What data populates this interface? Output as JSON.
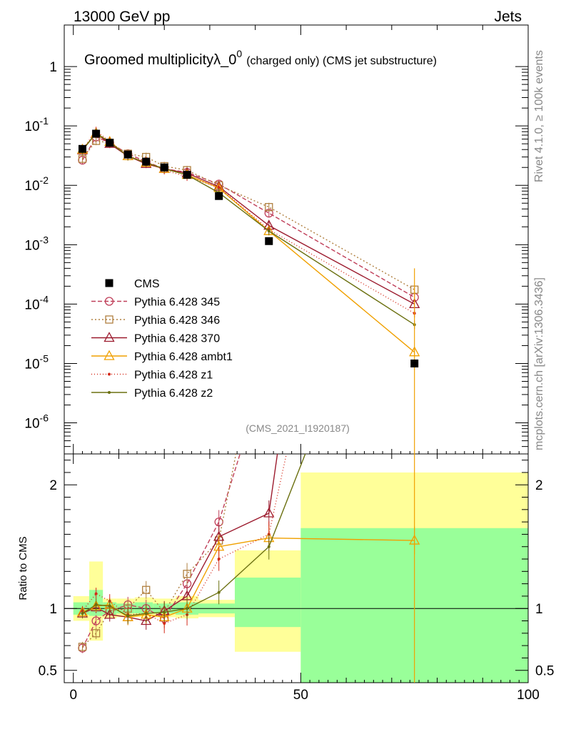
{
  "header": {
    "left": "13000 GeV pp",
    "right": "Jets"
  },
  "side_labels": {
    "top": "Rivet 4.1.0, ≥ 100k events",
    "bottom": "mcplots.cern.ch [arXiv:1306.3436]"
  },
  "chart_data": {
    "type": "line",
    "title_main": "Groomed multiplicityλ_0",
    "title_sup": "0",
    "title_extra": "(charged only) (CMS jet substructure)",
    "watermark": "(CMS_2021_I1920187)",
    "ylabel_ratio": "Ratio to CMS",
    "xlim": [
      -2,
      100
    ],
    "ylim_main": [
      3e-07,
      5
    ],
    "ylim_ratio": [
      0.4,
      2.25
    ],
    "x_ticks": [
      "0",
      "50",
      "100"
    ],
    "main_tick_labels": [
      "1",
      "10",
      "10",
      "10",
      "10",
      "10",
      "10"
    ],
    "main_tick_exps": [
      "",
      "-1",
      "-2",
      "-3",
      "-4",
      "-5",
      "-6"
    ],
    "ratio_tick_labels": [
      "0.5",
      "1",
      "2"
    ],
    "x": [
      2,
      5,
      8,
      12,
      16,
      20,
      25,
      32,
      43,
      75
    ],
    "data": {
      "name": "CMS",
      "values": [
        0.041,
        0.074,
        0.052,
        0.033,
        0.025,
        0.02,
        0.015,
        0.0066,
        0.00115,
        1e-05
      ],
      "bins": [
        [
          0,
          3.5
        ],
        [
          3.5,
          6.5
        ],
        [
          6.5,
          9.5
        ],
        [
          9.5,
          13.5
        ],
        [
          13.5,
          17.5
        ],
        [
          17.5,
          22.5
        ],
        [
          22.5,
          27.5
        ],
        [
          27.5,
          35.5
        ],
        [
          35.5,
          50
        ],
        [
          50,
          100
        ]
      ],
      "band_green": [
        [
          0.95,
          1.05
        ],
        [
          0.94,
          1.15
        ],
        [
          0.95,
          1.05
        ],
        [
          0.96,
          1.04
        ],
        [
          0.96,
          1.05
        ],
        [
          0.96,
          1.04
        ],
        [
          0.95,
          1.05
        ],
        [
          0.96,
          1.04
        ],
        [
          0.85,
          1.25
        ],
        [
          0.37,
          1.65
        ]
      ],
      "band_yellow": [
        [
          0.9,
          1.1
        ],
        [
          0.74,
          1.38
        ],
        [
          0.92,
          1.08
        ],
        [
          0.93,
          1.08
        ],
        [
          0.93,
          1.09
        ],
        [
          0.93,
          1.08
        ],
        [
          0.92,
          1.1
        ],
        [
          0.93,
          1.07
        ],
        [
          0.65,
          1.47
        ],
        [
          0.33,
          2.1
        ]
      ]
    },
    "series": [
      {
        "name": "Pythia 6.428 345",
        "color": "#c0405a",
        "dash": "6,3",
        "marker": "circle",
        "values": [
          0.0265,
          0.065,
          0.052,
          0.034,
          0.025,
          0.019,
          0.0165,
          0.0105,
          0.0034,
          0.00013
        ],
        "ratio": [
          0.68,
          0.9,
          0.98,
          1.03,
          1.0,
          0.92,
          1.2,
          1.7,
          3.0,
          13
        ]
      },
      {
        "name": "Pythia 6.428 346",
        "color": "#b08040",
        "dash": "2,3",
        "marker": "square",
        "values": [
          0.028,
          0.056,
          0.052,
          0.034,
          0.03,
          0.021,
          0.018,
          0.01,
          0.0043,
          0.000175
        ],
        "ratio": [
          0.69,
          0.8,
          0.98,
          1.0,
          1.15,
          0.97,
          1.28,
          1.55,
          3.6,
          17
        ]
      },
      {
        "name": "Pythia 6.428 370",
        "color": "#9c1b2e",
        "dash": "",
        "marker": "triangle",
        "values": [
          0.039,
          0.075,
          0.05,
          0.031,
          0.023,
          0.019,
          0.016,
          0.0095,
          0.0021,
          0.0001
        ],
        "ratio": [
          0.96,
          1.01,
          0.95,
          0.93,
          0.9,
          0.98,
          1.1,
          1.58,
          1.77,
          10
        ]
      },
      {
        "name": "Pythia 6.428 ambt1",
        "color": "#f0a000",
        "dash": "",
        "marker": "triangle-open",
        "values": [
          0.04,
          0.075,
          0.054,
          0.031,
          0.024,
          0.019,
          0.015,
          0.009,
          0.0017,
          1.55e-05
        ],
        "ratio": [
          0.97,
          1.02,
          1.03,
          0.93,
          0.95,
          0.93,
          1.0,
          1.5,
          1.57,
          1.55
        ]
      },
      {
        "name": "Pythia 6.428 z1",
        "color": "#d42a1a",
        "dash": "1,3",
        "marker": "dot",
        "values": [
          0.04,
          0.082,
          0.055,
          0.031,
          0.025,
          0.018,
          0.014,
          0.0092,
          0.0018,
          7e-05
        ],
        "ratio": [
          0.98,
          1.12,
          1.06,
          0.95,
          0.96,
          0.88,
          0.95,
          1.4,
          1.6,
          7
        ]
      },
      {
        "name": "Pythia 6.428 z2",
        "color": "#6b7010",
        "dash": "",
        "marker": "dot",
        "values": [
          0.039,
          0.076,
          0.053,
          0.031,
          0.024,
          0.019,
          0.015,
          0.0075,
          0.0017,
          4.5e-05
        ],
        "ratio": [
          0.96,
          1.03,
          1.02,
          0.94,
          0.96,
          0.97,
          1.0,
          1.13,
          1.5,
          4.5
        ]
      }
    ]
  }
}
